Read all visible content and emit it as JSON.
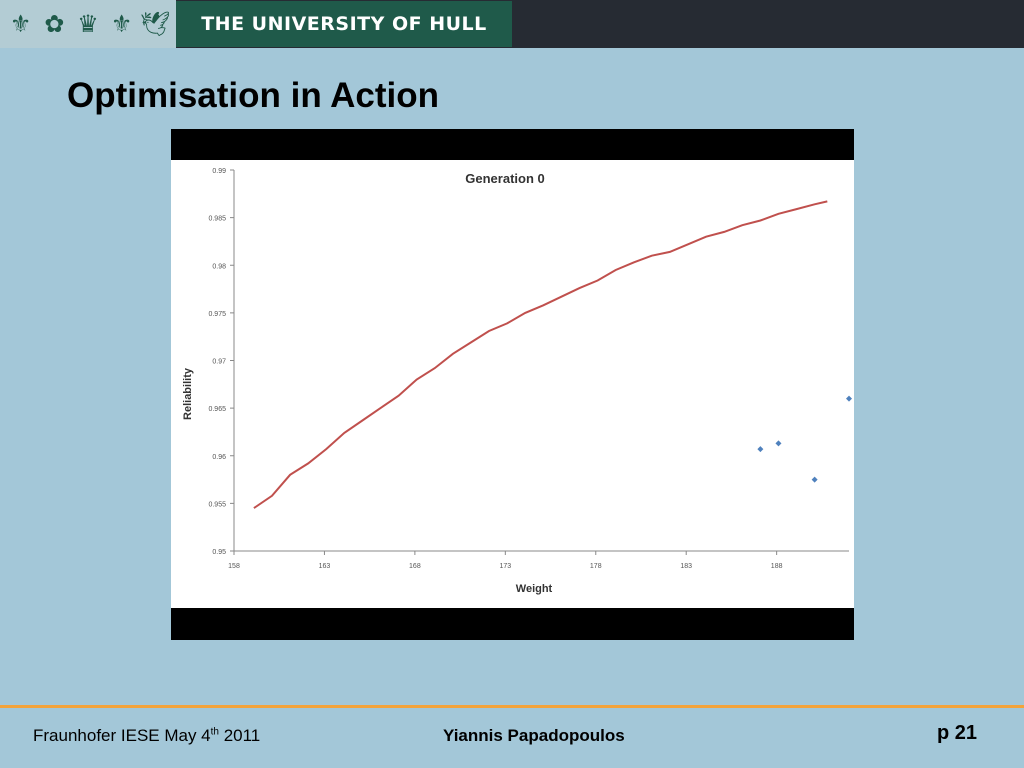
{
  "header": {
    "university_name": "THE UNIVERSITY OF HULL",
    "crest_icons": [
      "crest-icon",
      "rose-icon",
      "crown-icon",
      "fleur-de-lis-icon",
      "bird-icon"
    ],
    "colors": {
      "banner": "#262b33",
      "name_box": "#1f5a4a",
      "crest_strip": "#b3ccd4"
    }
  },
  "slide": {
    "title": "Optimisation in Action",
    "background": "#a3c7d8"
  },
  "chart_data": {
    "type": "line",
    "title": "Generation 0",
    "xlabel": "Weight",
    "ylabel": "Reliability",
    "xlim": [
      158,
      192
    ],
    "ylim": [
      0.95,
      0.99
    ],
    "x_ticks": [
      "158",
      "163",
      "168",
      "173",
      "178",
      "183",
      "188"
    ],
    "y_ticks": [
      "0.95",
      "0.955",
      "0.96",
      "0.965",
      "0.97",
      "0.975",
      "0.98",
      "0.985",
      "0.99"
    ],
    "grid": false,
    "series": [
      {
        "type": "line",
        "color": "#c0504d",
        "x": [
          159.1,
          160.1,
          161.1,
          162.1,
          163.1,
          164.1,
          165.1,
          166.1,
          167.1,
          168.1,
          169.1,
          170.1,
          171.1,
          172.1,
          173.1,
          174.1,
          175.1,
          176.1,
          177.1,
          178.1,
          179.1,
          180.1,
          181.1,
          182.1,
          183.1,
          184.1,
          185.1,
          186.1,
          187.1,
          188.1,
          189.1,
          190.1,
          190.8
        ],
        "y": [
          0.9545,
          0.9558,
          0.958,
          0.9592,
          0.9607,
          0.9624,
          0.9637,
          0.965,
          0.9663,
          0.968,
          0.9692,
          0.9707,
          0.9719,
          0.9731,
          0.9739,
          0.975,
          0.9758,
          0.9767,
          0.9776,
          0.9784,
          0.9795,
          0.9803,
          0.981,
          0.9814,
          0.9822,
          0.983,
          0.9835,
          0.9842,
          0.9847,
          0.9854,
          0.9859,
          0.9864,
          0.9867
        ]
      },
      {
        "type": "scatter",
        "color": "#4f81bd",
        "x": [
          187.1,
          188.1,
          190.1,
          192.0
        ],
        "y": [
          0.9607,
          0.9613,
          0.9575,
          0.966
        ]
      }
    ]
  },
  "footer": {
    "left_prefix": "Fraunhofer IESE May 4",
    "left_sup": "th",
    "left_suffix": " 2011",
    "center": "Yiannis Papadopoulos",
    "right": "p 21",
    "rule_color": "#f3a33a"
  }
}
